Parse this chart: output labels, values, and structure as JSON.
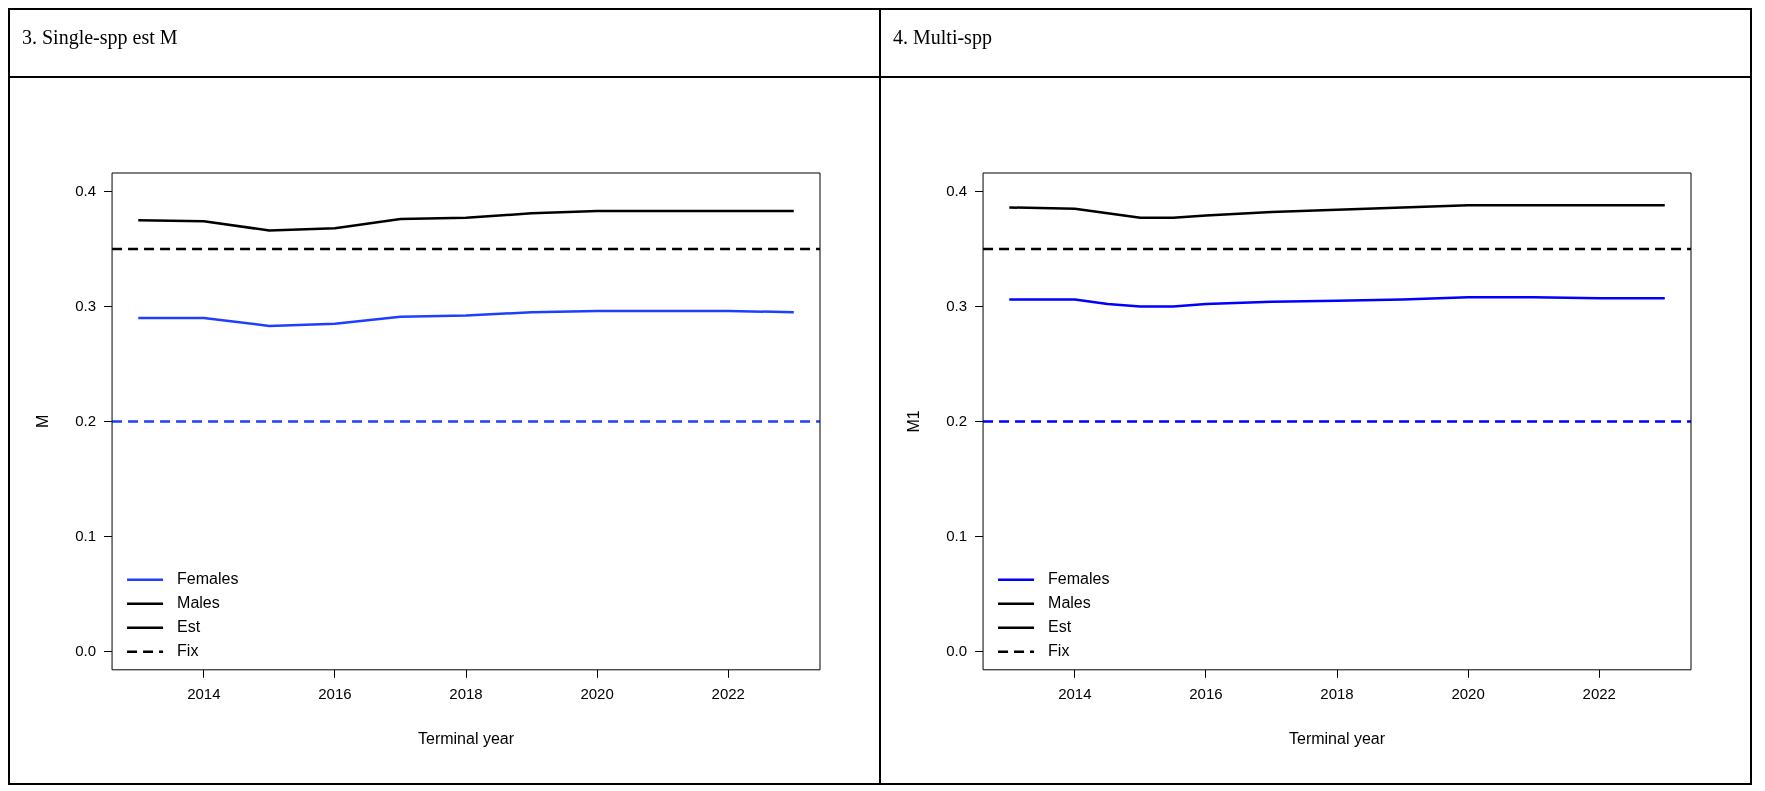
{
  "chart_data": [
    {
      "type": "line",
      "title": "3. Single-spp est M",
      "xlabel": "Terminal year",
      "ylabel": "M",
      "xlim": [
        2012.6,
        2023.4
      ],
      "ylim": [
        -0.016,
        0.416
      ],
      "xticks": [
        2014,
        2016,
        2018,
        2020,
        2022
      ],
      "yticks": [
        {
          "value": 0,
          "label": "0.0"
        },
        0.1,
        0.2,
        0.3,
        0.4
      ],
      "legend": "bottom left",
      "line_style": "solid",
      "annotations": [
        "Est"
      ],
      "ref_lines": [
        {
          "axis": "y",
          "value": 0.35,
          "label": "Fix",
          "color": "#000000",
          "line_style": "dashed"
        },
        {
          "axis": "y",
          "value": 0.2,
          "color": "#1f3fff",
          "line_style": "dashed"
        }
      ],
      "series": [
        {
          "name": "Females",
          "color": "#1f3fff",
          "x": [
            2013,
            2014,
            2015,
            2016,
            2017,
            2018,
            2019,
            2020,
            2021,
            2022,
            2023
          ],
          "values": [
            0.29,
            0.29,
            0.283,
            0.285,
            0.291,
            0.292,
            0.295,
            0.296,
            0.296,
            0.296,
            0.295
          ]
        },
        {
          "name": "Males",
          "color": "#000000",
          "x": [
            2013,
            2014,
            2015,
            2016,
            2017,
            2018,
            2019,
            2020,
            2021,
            2022,
            2023
          ],
          "values": [
            0.375,
            0.374,
            0.366,
            0.368,
            0.376,
            0.377,
            0.381,
            0.383,
            0.383,
            0.383,
            0.383
          ]
        }
      ]
    },
    {
      "type": "line",
      "title": "4. Multi-spp",
      "xlabel": "Terminal year",
      "ylabel": "M1",
      "xlim": [
        2012.6,
        2023.4
      ],
      "ylim": [
        -0.016,
        0.416
      ],
      "xticks": [
        2014,
        2016,
        2018,
        2020,
        2022
      ],
      "yticks": [
        {
          "value": 0,
          "label": "0.0"
        },
        0.1,
        0.2,
        0.3,
        0.4
      ],
      "legend": "bottom left",
      "line_style": "solid",
      "annotations": [
        "Est"
      ],
      "ref_lines": [
        {
          "axis": "y",
          "value": 0.35,
          "label": "Fix",
          "color": "#000000",
          "line_style": "dashed"
        },
        {
          "axis": "y",
          "value": 0.2,
          "color": "#0000ff",
          "line_style": "dashed"
        }
      ],
      "series": [
        {
          "name": "Females",
          "color": "#0000ff",
          "x": [
            2013,
            2014,
            2014.5,
            2015,
            2015.5,
            2016,
            2017,
            2018,
            2019,
            2020,
            2021,
            2022,
            2023
          ],
          "values": [
            0.306,
            0.306,
            0.302,
            0.3,
            0.3,
            0.302,
            0.304,
            0.305,
            0.306,
            0.308,
            0.308,
            0.307,
            0.307
          ]
        },
        {
          "name": "Males",
          "color": "#000000",
          "x": [
            2013,
            2014,
            2014.5,
            2015,
            2015.5,
            2016,
            2017,
            2018,
            2019,
            2020,
            2021,
            2022,
            2023
          ],
          "values": [
            0.386,
            0.385,
            0.381,
            0.377,
            0.377,
            0.379,
            0.382,
            0.384,
            0.386,
            0.388,
            0.388,
            0.388,
            0.388
          ]
        }
      ]
    }
  ]
}
